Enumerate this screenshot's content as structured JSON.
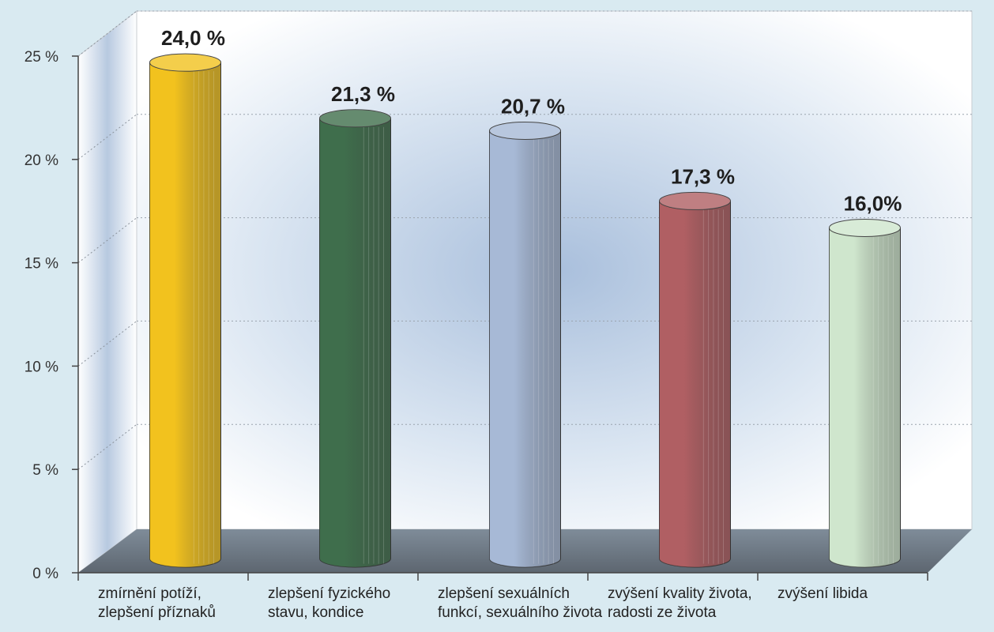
{
  "chart_data": {
    "type": "bar",
    "title": "",
    "xlabel": "",
    "ylabel": "",
    "categories": [
      [
        "zmírnění potíží,",
        "zlepšení příznaků"
      ],
      [
        "zlepšení fyzického",
        "stavu, kondice"
      ],
      [
        "zlepšení sexuálních",
        "funkcí, sexuálního života"
      ],
      [
        "zvýšení kvality života,",
        "radosti ze života"
      ],
      [
        "zvýšení libida"
      ]
    ],
    "values": [
      24.0,
      21.3,
      20.7,
      17.3,
      16.0
    ],
    "value_labels": [
      "24,0 %",
      "21,3 %",
      "20,7 %",
      "17,3 %",
      "16,0%"
    ],
    "ylim": [
      0,
      25
    ],
    "yticks": [
      0,
      5,
      10,
      15,
      20,
      25
    ],
    "ytick_labels": [
      "0 %",
      "5 %",
      "10 %",
      "15 %",
      "20 %",
      "25 %"
    ],
    "grid": true,
    "colors": [
      "#f2c21e",
      "#3f6e4c",
      "#a7b9d6",
      "#b05f63",
      "#cfe6cd"
    ]
  }
}
